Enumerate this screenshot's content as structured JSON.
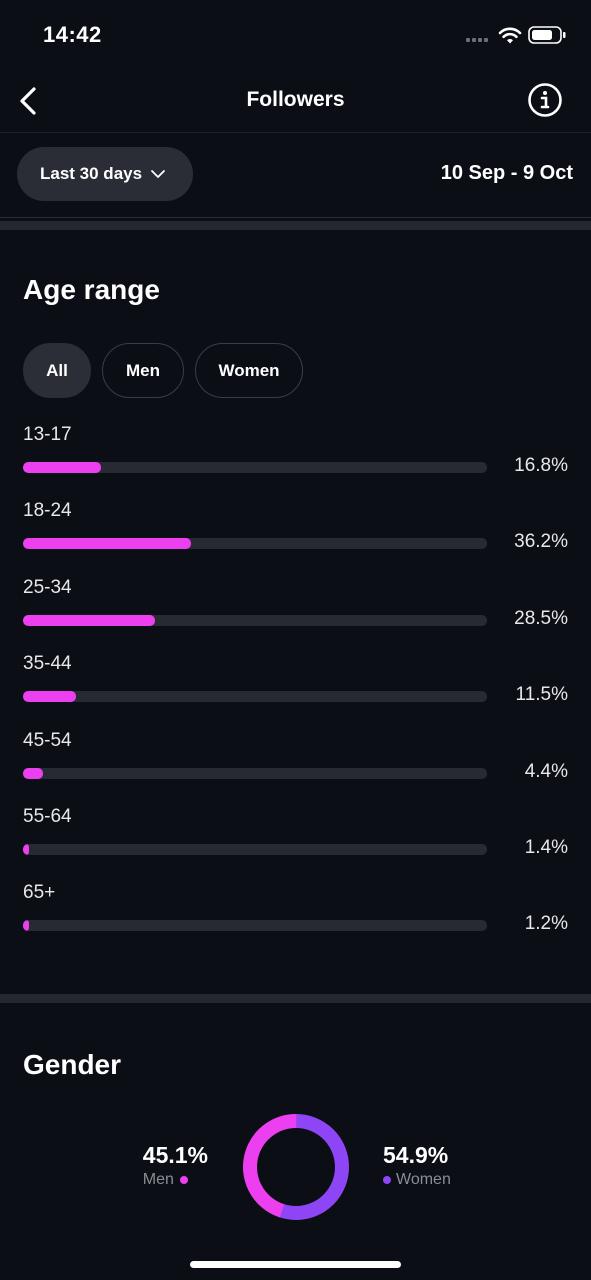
{
  "status_bar": {
    "time": "14:42"
  },
  "header": {
    "title": "Followers"
  },
  "filter": {
    "range_label": "Last 30 days",
    "date_range": "10 Sep - 9 Oct"
  },
  "age_range": {
    "title": "Age range",
    "tabs": [
      {
        "label": "All",
        "active": true
      },
      {
        "label": "Men",
        "active": false
      },
      {
        "label": "Women",
        "active": false
      }
    ],
    "rows": [
      {
        "label": "13-17",
        "pct_text": "16.8%",
        "value": 16.8
      },
      {
        "label": "18-24",
        "pct_text": "36.2%",
        "value": 36.2
      },
      {
        "label": "25-34",
        "pct_text": "28.5%",
        "value": 28.5
      },
      {
        "label": "35-44",
        "pct_text": "11.5%",
        "value": 11.5
      },
      {
        "label": "45-54",
        "pct_text": "4.4%",
        "value": 4.4
      },
      {
        "label": "55-64",
        "pct_text": "1.4%",
        "value": 1.4
      },
      {
        "label": "65+",
        "pct_text": "1.2%",
        "value": 1.2
      }
    ]
  },
  "gender": {
    "title": "Gender",
    "men": {
      "pct_text": "45.1%",
      "label": "Men",
      "value": 45.1
    },
    "women": {
      "pct_text": "54.9%",
      "label": "Women",
      "value": 54.9
    }
  },
  "colors": {
    "background": "#0c0e15",
    "accent_men": "#ec3ff0",
    "accent_women": "#8e45f5",
    "track": "#272a33"
  },
  "icons": {
    "back": "chevron-left-icon",
    "info": "info-icon",
    "dropdown": "chevron-down-icon"
  }
}
